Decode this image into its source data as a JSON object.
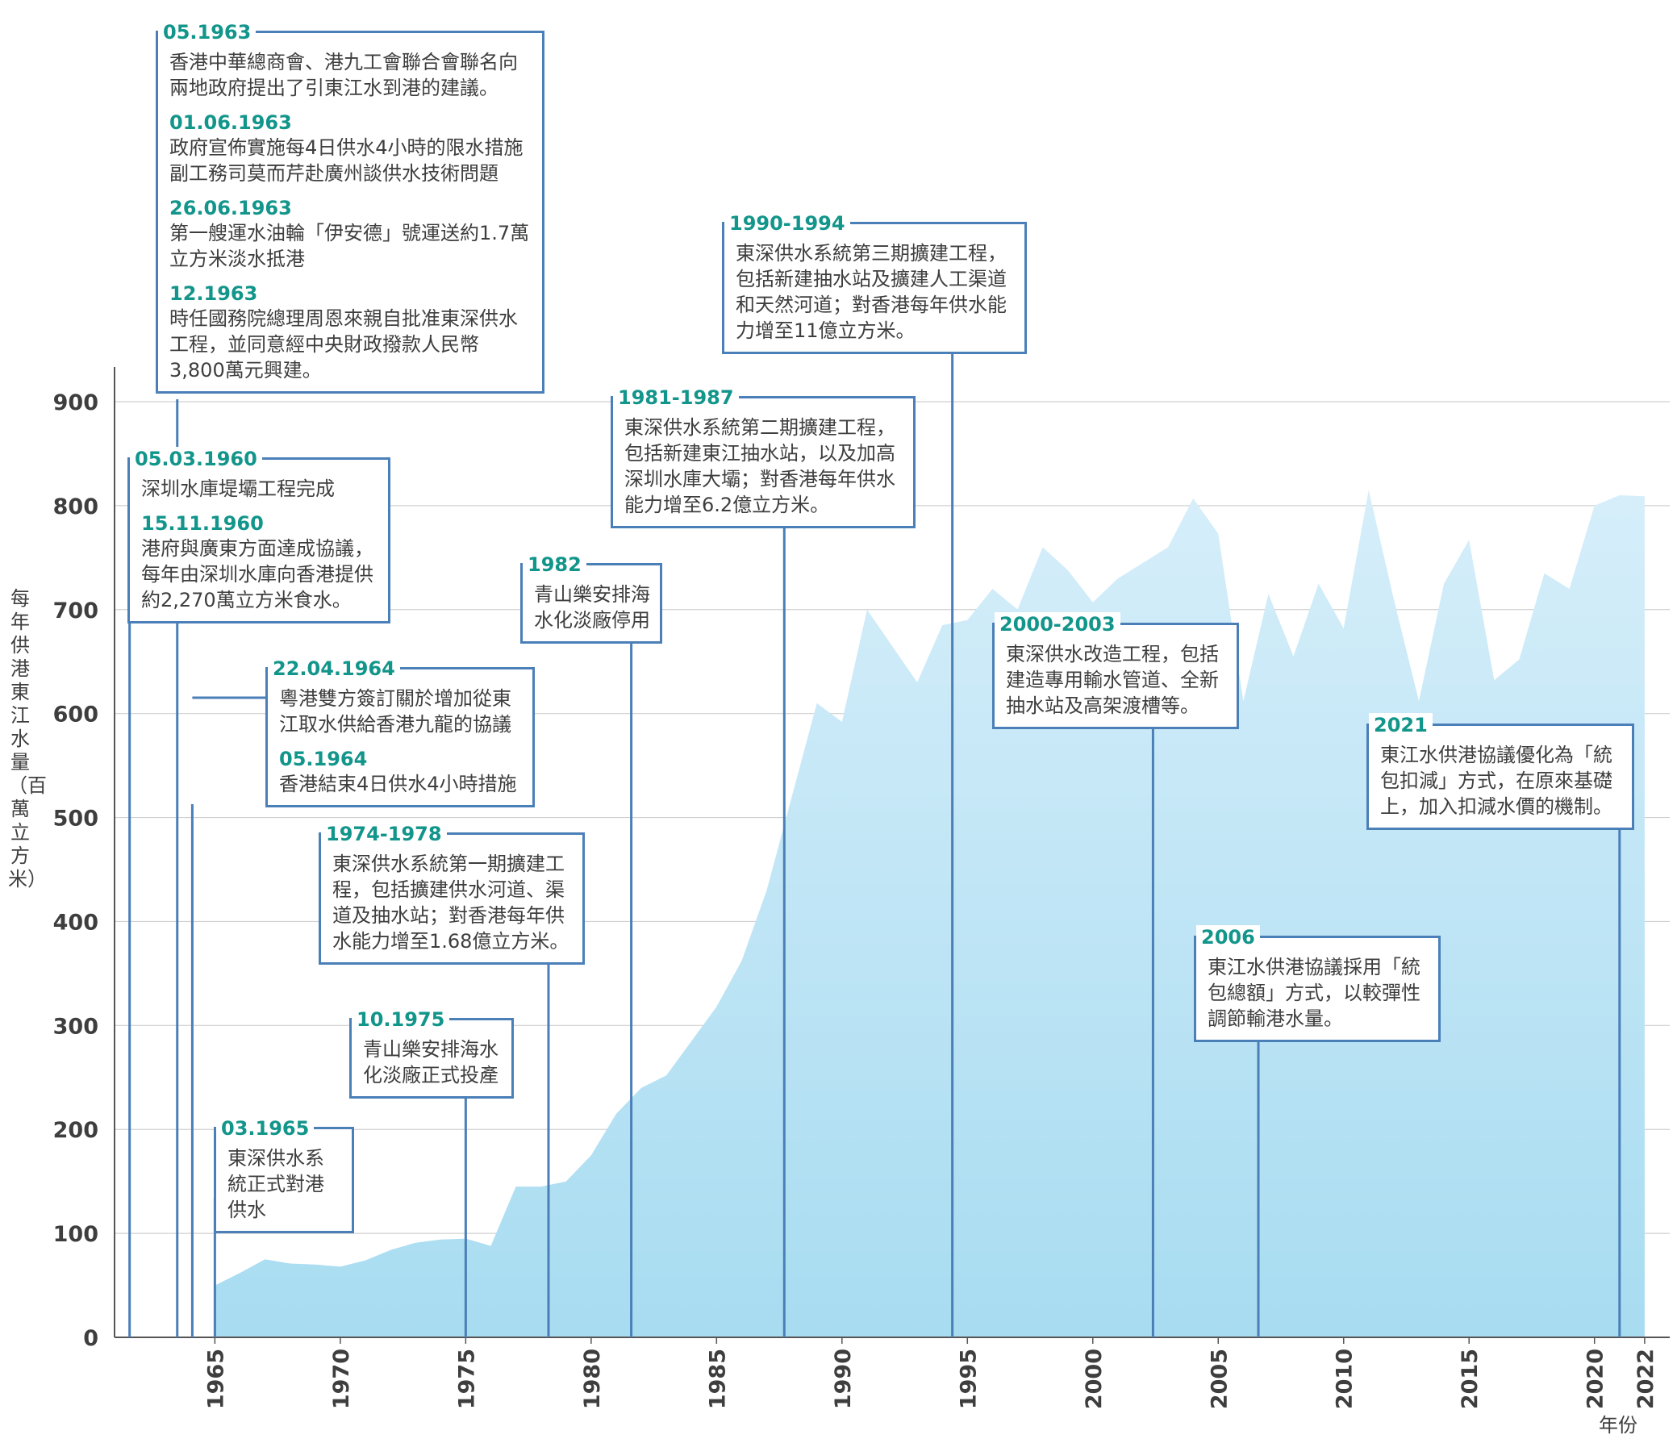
{
  "chart_data": {
    "type": "area",
    "title": "",
    "ylabel": "每年供港東江水量（百萬立方米）",
    "xlabel": "年份",
    "ylim": [
      0,
      900
    ],
    "yticks": [
      0,
      100,
      200,
      300,
      400,
      500,
      600,
      700,
      800,
      900
    ],
    "xlim": [
      1961,
      2023
    ],
    "xticks": [
      1965,
      1970,
      1975,
      1980,
      1985,
      1990,
      1995,
      2000,
      2005,
      2010,
      2015,
      2020,
      2022
    ],
    "grid": true,
    "series": [
      {
        "color": "#aee0f3",
        "x": [
          1965,
          1966,
          1967,
          1968,
          1969,
          1970,
          1971,
          1972,
          1973,
          1974,
          1975,
          1976,
          1977,
          1978,
          1979,
          1980,
          1981,
          1982,
          1983,
          1984,
          1985,
          1986,
          1987,
          1988,
          1989,
          1990,
          1991,
          1992,
          1993,
          1994,
          1995,
          1996,
          1997,
          1998,
          1999,
          2000,
          2001,
          2002,
          2003,
          2004,
          2005,
          2006,
          2007,
          2008,
          2009,
          2010,
          2011,
          2012,
          2013,
          2014,
          2015,
          2016,
          2017,
          2018,
          2019,
          2020,
          2021,
          2022
        ],
        "y": [
          50,
          62,
          75,
          71,
          70,
          68,
          74,
          84,
          91,
          94,
          95,
          88,
          145,
          145,
          150,
          175,
          215,
          240,
          252,
          285,
          318,
          362,
          430,
          520,
          610,
          592,
          700,
          665,
          630,
          685,
          690,
          720,
          700,
          760,
          738,
          707,
          730,
          745,
          760,
          807,
          773,
          612,
          715,
          655,
          725,
          682,
          815,
          710,
          612,
          725,
          767,
          632,
          652,
          735,
          720,
          800,
          810,
          809
        ]
      }
    ]
  },
  "annotations": [
    {
      "x": 1961.6,
      "entries": [
        {
          "date": "05.03.1960",
          "text": "深圳水庫堤壩工程完成"
        },
        {
          "date": "15.11.1960",
          "text": "港府與廣東方面達成協議，每年由深圳水庫向香港提供約2,270萬立方米食水。"
        }
      ]
    },
    {
      "x": 1963.5,
      "entries": [
        {
          "date": "05.1963",
          "text": "香港中華總商會、港九工會聯合會聯名向兩地政府提出了引東江水到港的建議。"
        },
        {
          "date": "01.06.1963",
          "text": "政府宣佈實施每4日供水4小時的限水措施副工務司莫而芹赴廣州談供水技術問題"
        },
        {
          "date": "26.06.1963",
          "text": "第一艘運水油輪「伊安德」號運送約1.7萬立方米淡水抵港"
        },
        {
          "date": "12.1963",
          "text": "時任國務院總理周恩來親自批准東深供水工程，並同意經中央財政撥款人民幣3,800萬元興建。"
        }
      ]
    },
    {
      "x": 1964.1,
      "entries": [
        {
          "date": "22.04.1964",
          "text": "粵港雙方簽訂關於增加從東江取水供給香港九龍的協議"
        },
        {
          "date": "05.1964",
          "text": "香港結束4日供水4小時措施"
        }
      ]
    },
    {
      "x": 1965.0,
      "entries": [
        {
          "date": "03.1965",
          "text": "東深供水系統正式對港供水"
        }
      ]
    },
    {
      "x": 1975.0,
      "entries": [
        {
          "date": "10.1975",
          "text": "青山樂安排海水化淡廠正式投產"
        }
      ]
    },
    {
      "x": 1978.3,
      "entries": [
        {
          "date": "1974-1978",
          "text": "東深供水系統第一期擴建工程，包括擴建供水河道、渠道及抽水站；對香港每年供水能力增至1.68億立方米。"
        }
      ]
    },
    {
      "x": 1981.6,
      "entries": [
        {
          "date": "1982",
          "text": "青山樂安排海水化淡廠停用"
        }
      ]
    },
    {
      "x": 1987.7,
      "entries": [
        {
          "date": "1981-1987",
          "text": "東深供水系統第二期擴建工程，包括新建東江抽水站，以及加高深圳水庫大壩；對香港每年供水能力增至6.2億立方米。"
        }
      ]
    },
    {
      "x": 1994.4,
      "entries": [
        {
          "date": "1990-1994",
          "text": "東深供水系統第三期擴建工程，包括新建抽水站及擴建人工渠道和天然河道；對香港每年供水能力增至11億立方米。"
        }
      ]
    },
    {
      "x": 2002.4,
      "entries": [
        {
          "date": "2000-2003",
          "text": "東深供水改造工程，包括建造專用輸水管道、全新抽水站及高架渡槽等。"
        }
      ]
    },
    {
      "x": 2006.6,
      "entries": [
        {
          "date": "2006",
          "text": "東江水供港協議採用「統包總額」方式，以較彈性調節輸港水量。"
        }
      ]
    },
    {
      "x": 2021.0,
      "entries": [
        {
          "date": "2021",
          "text": "東江水供港協議優化為「統包扣減」方式，在原來基礎上，加入扣減水價的機制。"
        }
      ]
    }
  ]
}
